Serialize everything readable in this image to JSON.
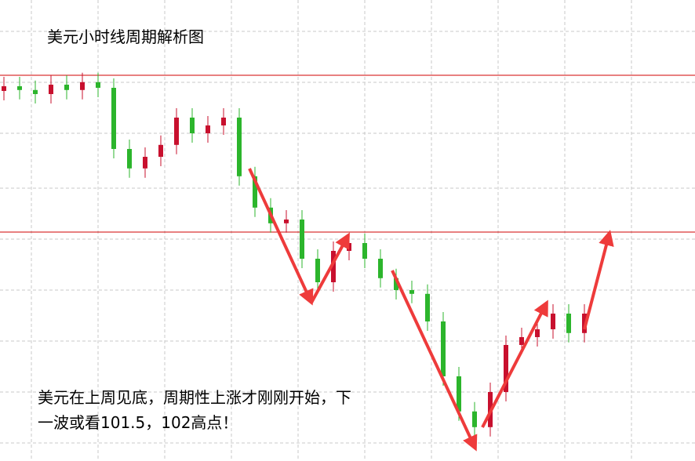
{
  "chart_data": {
    "type": "candlestick",
    "title": "美元小时线周期解析图",
    "annotation": [
      "美元在上周见底，周期性上涨才刚刚开始，下",
      "一波或看101.5，102高点！"
    ],
    "ylim": [
      100.77,
      102.24
    ],
    "hlines": [
      102,
      101.5
    ],
    "hline_color": "#d00000",
    "up_color": "#c8102e",
    "down_color": "#2cb52c",
    "open": [
      101.95,
      101.965,
      101.953,
      101.94,
      101.97,
      101.953,
      101.978,
      101.96,
      101.765,
      101.703,
      101.74,
      101.778,
      101.865,
      101.815,
      101.84,
      101.865,
      101.678,
      101.578,
      101.528,
      101.54,
      101.415,
      101.34,
      101.44,
      101.465,
      101.415,
      101.353,
      101.315,
      101.303,
      101.215,
      101.04,
      100.928,
      100.878,
      100.99,
      101.14,
      101.165,
      101.19,
      101.24,
      101.178
    ],
    "high": [
      101.995,
      101.995,
      101.983,
      102.0,
      102.0,
      102.008,
      102.008,
      101.99,
      101.795,
      101.77,
      101.808,
      101.895,
      101.895,
      101.87,
      101.895,
      101.895,
      101.708,
      101.608,
      101.57,
      101.57,
      101.445,
      101.47,
      101.495,
      101.495,
      101.445,
      101.383,
      101.345,
      101.333,
      101.245,
      101.07,
      100.958,
      101.02,
      101.17,
      101.195,
      101.22,
      101.27,
      101.27,
      101.27
    ],
    "low": [
      101.92,
      101.923,
      101.91,
      101.91,
      101.923,
      101.923,
      101.93,
      101.735,
      101.673,
      101.673,
      101.71,
      101.748,
      101.785,
      101.785,
      101.81,
      101.648,
      101.548,
      101.498,
      101.498,
      101.385,
      101.31,
      101.31,
      101.41,
      101.385,
      101.323,
      101.285,
      101.273,
      101.185,
      101.01,
      100.898,
      100.848,
      100.848,
      100.96,
      101.11,
      101.135,
      101.16,
      101.148,
      101.148
    ],
    "close": [
      101.965,
      101.953,
      101.94,
      101.97,
      101.953,
      101.978,
      101.96,
      101.765,
      101.703,
      101.74,
      101.778,
      101.865,
      101.815,
      101.84,
      101.865,
      101.678,
      101.578,
      101.528,
      101.54,
      101.415,
      101.34,
      101.44,
      101.465,
      101.415,
      101.353,
      101.315,
      101.303,
      101.215,
      101.04,
      100.928,
      100.878,
      100.99,
      101.14,
      101.165,
      101.19,
      101.24,
      101.178,
      101.24
    ]
  }
}
